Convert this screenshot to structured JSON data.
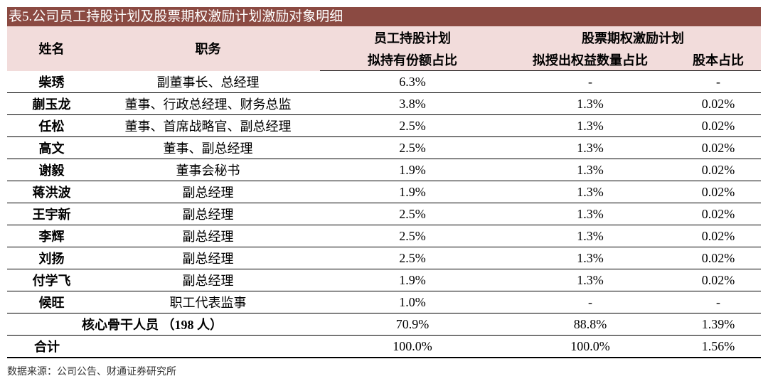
{
  "title": "表5.公司员工持股计划及股票期权激励计划激励对象明细",
  "table": {
    "header": {
      "name": "姓名",
      "role": "职务",
      "esop_group": "员工持股计划",
      "esop": "拟持有份额占比",
      "option_group": "股票期权激励计划",
      "options": "拟授出权益数量占比",
      "equity": "股本占比"
    },
    "rows": [
      [
        "柴琇",
        "副董事长、总经理",
        "6.3%",
        "-",
        "-"
      ],
      [
        "蒯玉龙",
        "董事、行政总经理、财务总监",
        "3.8%",
        "1.3%",
        "0.02%"
      ],
      [
        "任松",
        "董事、首席战略官、副总经理",
        "2.5%",
        "1.3%",
        "0.02%"
      ],
      [
        "高文",
        "董事、副总经理",
        "2.5%",
        "1.3%",
        "0.02%"
      ],
      [
        "谢毅",
        "董事会秘书",
        "1.9%",
        "1.3%",
        "0.02%"
      ],
      [
        "蒋洪波",
        "副总经理",
        "1.9%",
        "1.3%",
        "0.02%"
      ],
      [
        "王宇新",
        "副总经理",
        "2.5%",
        "1.3%",
        "0.02%"
      ],
      [
        "李辉",
        "副总经理",
        "2.5%",
        "1.3%",
        "0.02%"
      ],
      [
        "刘扬",
        "副总经理",
        "2.5%",
        "1.3%",
        "0.02%"
      ],
      [
        "付学飞",
        "副总经理",
        "1.9%",
        "1.3%",
        "0.02%"
      ],
      [
        "候旺",
        "职工代表监事",
        "1.0%",
        "-",
        "-"
      ]
    ],
    "core": {
      "label": "核心骨干人员 （198 人）",
      "values": [
        "70.9%",
        "88.8%",
        "1.39%"
      ]
    },
    "total": {
      "label": "合计",
      "values": [
        "100.0%",
        "100.0%",
        "1.56%"
      ]
    }
  },
  "source": "数据来源：公司公告、财通证券研究所"
}
